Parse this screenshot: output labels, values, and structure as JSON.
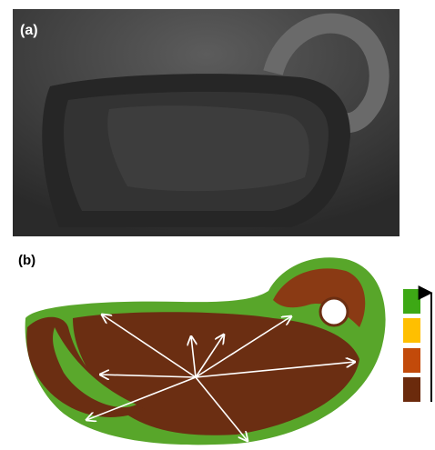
{
  "panel_a": {
    "label": "(a)"
  },
  "panel_b": {
    "label": "(b)"
  }
}
